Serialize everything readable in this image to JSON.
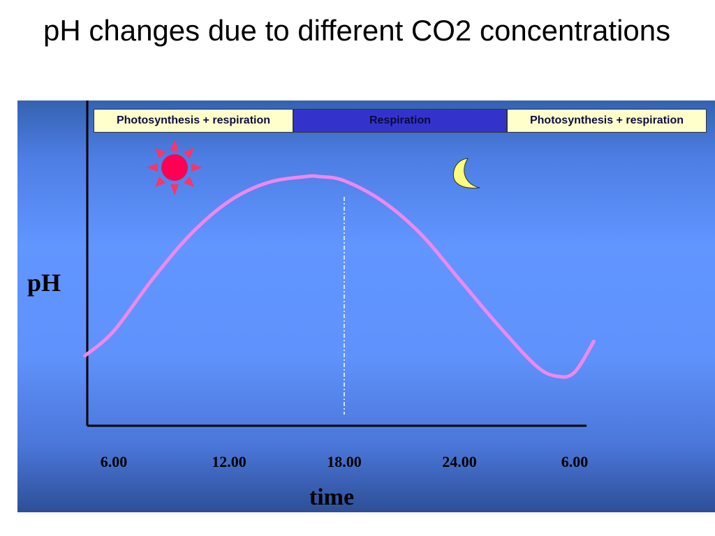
{
  "slide": {
    "title": "pH changes due to different CO2 concentrations"
  },
  "chart_data": {
    "type": "line",
    "title": "",
    "xlabel": "time",
    "ylabel": "pH",
    "x_ticks": [
      "6.00",
      "12.00",
      "18.00",
      "24.00",
      "6.00"
    ],
    "x_hours_elapsed_ticks": [
      0,
      6,
      12,
      18,
      24
    ],
    "xlim": [
      0,
      26
    ],
    "ylim": [
      0,
      1
    ],
    "y_scale": "relative (no numeric ticks shown)",
    "series": [
      {
        "color": "#ee88ee",
        "x": [
          -1.5,
          0,
          2,
          4,
          6,
          8,
          10,
          10.7,
          12,
          14,
          16,
          18,
          20,
          22,
          23.1,
          24,
          25
        ],
        "y": [
          0.13,
          0.25,
          0.5,
          0.72,
          0.88,
          0.97,
          1.0,
          1.0,
          0.98,
          0.88,
          0.72,
          0.5,
          0.28,
          0.08,
          0.03,
          0.05,
          0.2
        ]
      }
    ],
    "vertical_marker": {
      "x": 12,
      "style": "dashed",
      "color": "#ffffff"
    },
    "phase_bands": [
      {
        "label": "Photosynthesis + respiration",
        "style": "light"
      },
      {
        "label": "Respiration",
        "style": "dark"
      },
      {
        "label": "Photosynthesis + respiration",
        "style": "light"
      }
    ],
    "icons": [
      {
        "name": "sun-icon",
        "color": "#ff0055"
      },
      {
        "name": "moon-icon",
        "color": "#ffff80"
      }
    ],
    "grid": false,
    "legend": "none"
  }
}
